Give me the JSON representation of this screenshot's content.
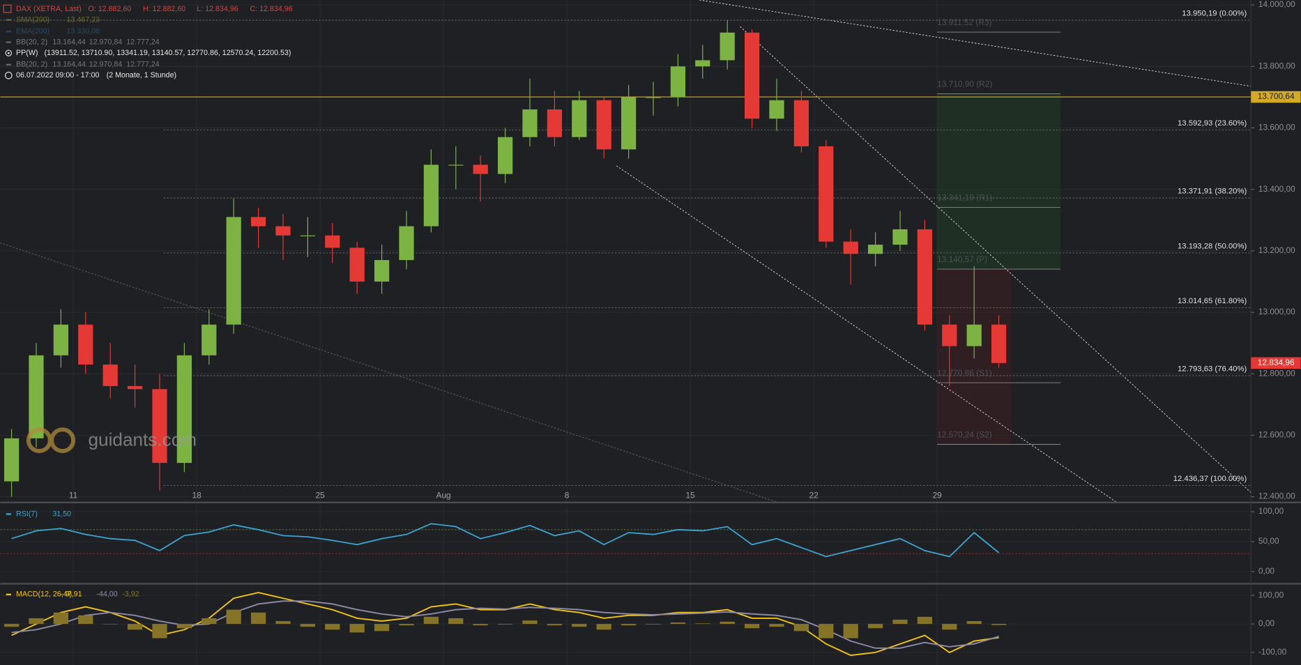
{
  "header": {
    "ohlc": [
      "O: 12.882,60",
      "H: 12.882,60",
      "L: 12.834,96",
      "C: 12.834,96"
    ],
    "indicators": [
      {
        "name": "SMA(200)",
        "values": [
          "13.467,23"
        ]
      },
      {
        "name": "EMA(200)",
        "values": [
          "13.330,06"
        ]
      },
      {
        "name": "BB(20, 2)",
        "values": [
          "13.164,44",
          "12.970,84",
          "12.777,24"
        ]
      },
      {
        "name": "PP(W)",
        "values": [
          "(13911.52, 13710.90, 13341.19, 13140.57, 12770.86, 12570.24, 12200.53)"
        ]
      },
      {
        "name": "BB(20, 2)",
        "values": [
          "13.164,44",
          "12.970,84",
          "12.777,24"
        ]
      }
    ],
    "period": "06.07.2022 09:00 - 17:00",
    "resolution": "(2 Monate, 1 Stunde)",
    "watermark": "guidants.com"
  },
  "chart_data": [
    {
      "type": "candlestick",
      "x": [
        "07-06",
        "07-07",
        "07-08",
        "07-11",
        "07-12",
        "07-13",
        "07-14",
        "07-15",
        "07-18",
        "07-19",
        "07-20",
        "07-21",
        "07-22",
        "07-25",
        "07-26",
        "07-27",
        "07-28",
        "07-29",
        "08-01",
        "08-02",
        "08-03",
        "08-04",
        "08-05",
        "08-08",
        "08-09",
        "08-10",
        "08-11",
        "08-12",
        "08-15",
        "08-16",
        "08-17",
        "08-18",
        "08-19",
        "08-22",
        "08-23",
        "08-24",
        "08-25",
        "08-26",
        "08-29",
        "08-30",
        "08-31"
      ],
      "series": [
        {
          "name": "DAX (XETRA, Last)",
          "up_color": "#7cb342",
          "down_color": "#e53935",
          "open": [
            12450,
            12590,
            12860,
            12960,
            12830,
            12760,
            12750,
            12510,
            12860,
            12960,
            13310,
            13280,
            13250,
            13250,
            13210,
            13100,
            13170,
            13280,
            13480,
            13480,
            13450,
            13570,
            13660,
            13570,
            13690,
            13530,
            13700,
            13700,
            13800,
            13820,
            13910,
            13630,
            13690,
            13540,
            13230,
            13190,
            13220,
            13270,
            12960,
            12890,
            12960
          ],
          "high": [
            12620,
            12900,
            13010,
            13000,
            12900,
            12830,
            12800,
            12900,
            13010,
            13370,
            13340,
            13320,
            13310,
            13290,
            13230,
            13220,
            13330,
            13530,
            13540,
            13510,
            13600,
            13760,
            13720,
            13720,
            13700,
            13740,
            13750,
            13840,
            13870,
            13950,
            13920,
            13760,
            13720,
            13560,
            13270,
            13260,
            13330,
            13300,
            12990,
            13150,
            12990
          ],
          "low": [
            12400,
            12560,
            12820,
            12800,
            12720,
            12690,
            12420,
            12480,
            12830,
            12930,
            13210,
            13170,
            13180,
            13160,
            13060,
            13060,
            13140,
            13260,
            13400,
            13360,
            13420,
            13540,
            13540,
            13560,
            13500,
            13500,
            13640,
            13670,
            13760,
            13790,
            13600,
            13590,
            13520,
            13210,
            13090,
            13150,
            13200,
            12940,
            12760,
            12850,
            12820
          ],
          "close": [
            12590,
            12860,
            12960,
            12830,
            12760,
            12750,
            12510,
            12860,
            12960,
            13310,
            13280,
            13250,
            13250,
            13210,
            13100,
            13170,
            13280,
            13480,
            13480,
            13450,
            13570,
            13660,
            13570,
            13690,
            13530,
            13700,
            13700,
            13800,
            13820,
            13910,
            13630,
            13690,
            13540,
            13230,
            13190,
            13220,
            13270,
            12960,
            12890,
            12960,
            12834.96
          ]
        }
      ],
      "ylim": [
        12384,
        14016
      ],
      "yticks": [
        {
          "value": 12400,
          "label": "12.400,00"
        },
        {
          "value": 12600,
          "label": "12.600,00"
        },
        {
          "value": 12800,
          "label": "12.800,00"
        },
        {
          "value": 13000,
          "label": "13.000,00"
        },
        {
          "value": 13200,
          "label": "13.200,00"
        },
        {
          "value": 13400,
          "label": "13.400,00"
        },
        {
          "value": 13600,
          "label": "13.600,00"
        },
        {
          "value": 13800,
          "label": "13.800,00"
        },
        {
          "value": 14000,
          "label": "14.000,00"
        }
      ],
      "xticks": [
        {
          "value": "07-11",
          "label": "11"
        },
        {
          "value": "07-18",
          "label": "18"
        },
        {
          "value": "07-25",
          "label": "25"
        },
        {
          "value": "08-01",
          "label": "Aug"
        },
        {
          "value": "08-08",
          "label": "8"
        },
        {
          "value": "08-15",
          "label": "15"
        },
        {
          "value": "08-22",
          "label": "22"
        },
        {
          "value": "08-29",
          "label": "29"
        }
      ],
      "grid": true,
      "levels": [
        {
          "value": 13950.19,
          "label": "13.950,19 (0.00%)"
        },
        {
          "value": 13592.93,
          "label": "13.592,93 (23.60%)"
        },
        {
          "value": 13371.91,
          "label": "13.371,91 (38.20%)"
        },
        {
          "value": 13193.28,
          "label": "13.193,28 (50.00%)"
        },
        {
          "value": 13014.65,
          "label": "13.014,65 (61.80%)"
        },
        {
          "value": 12793.63,
          "label": "12.793,63 (76.40%)"
        },
        {
          "value": 12436.37,
          "label": "12.436,37 (100.00%)"
        }
      ],
      "pivots": [
        {
          "value": 13911.52,
          "label": "13.911,52 (R3)"
        },
        {
          "value": 13710.9,
          "label": "13.710,90 (R2)"
        },
        {
          "value": 13341.19,
          "label": "13.341,19 (R1)"
        },
        {
          "value": 13140.57,
          "label": "13.140,57 (P)"
        },
        {
          "value": 12770.86,
          "label": "12.770,86 (S1)"
        },
        {
          "value": 12570.24,
          "label": "12.570,24 (S2)"
        }
      ],
      "marker": {
        "value": 13700.64,
        "label": "13.700,64",
        "color": "#d4a92a"
      },
      "last_price": {
        "value": 12834.96,
        "label": "12.834,96",
        "color": "#e53935"
      }
    },
    {
      "type": "line",
      "series": [
        {
          "name": "RSI(7)",
          "color": "#3aa6d4",
          "values": [
            55,
            68,
            72,
            62,
            55,
            52,
            35,
            60,
            66,
            78,
            70,
            60,
            58,
            52,
            45,
            55,
            62,
            80,
            75,
            55,
            65,
            77,
            60,
            68,
            45,
            65,
            62,
            70,
            68,
            75,
            45,
            55,
            40,
            25,
            35,
            45,
            55,
            35,
            25,
            65,
            31.5
          ],
          "last": {
            "value": 31.5,
            "label": "31,50"
          }
        }
      ],
      "ylim": [
        -19,
        114
      ],
      "yticks": [
        {
          "value": 0,
          "label": "0,00"
        },
        {
          "value": 50,
          "label": "50,00"
        },
        {
          "value": 100,
          "label": "100,00"
        }
      ],
      "bands": [
        {
          "value": 70,
          "color": "#4a7a2a"
        },
        {
          "value": 30,
          "color": "#8a2a2a"
        }
      ]
    },
    {
      "type": "macd",
      "series": [
        {
          "name": "MACD(12, 26, 9)",
          "color": "#f2c40f",
          "values": [
            -40,
            0,
            40,
            60,
            40,
            10,
            -40,
            -20,
            20,
            90,
            110,
            90,
            70,
            50,
            20,
            10,
            20,
            60,
            70,
            50,
            50,
            70,
            50,
            40,
            20,
            30,
            30,
            40,
            40,
            50,
            20,
            20,
            -10,
            -70,
            -110,
            -100,
            -70,
            -40,
            -100,
            -60,
            -47.91
          ],
          "last": {
            "value": -47.91,
            "label": "-47,91"
          }
        },
        {
          "color": "#8f8aa8",
          "values": [
            -30,
            -20,
            0,
            30,
            40,
            30,
            10,
            -5,
            0,
            40,
            70,
            80,
            80,
            70,
            50,
            35,
            25,
            35,
            50,
            55,
            52,
            58,
            55,
            50,
            40,
            35,
            32,
            35,
            38,
            42,
            35,
            30,
            15,
            -20,
            -60,
            -85,
            -85,
            -65,
            -80,
            -70,
            -44
          ],
          "last": {
            "value": -44.0,
            "label": "-44,00"
          }
        },
        {
          "color": "#857428",
          "bars": true,
          "values": [
            -10,
            20,
            40,
            30,
            0,
            -20,
            -50,
            -15,
            20,
            50,
            40,
            10,
            -10,
            -20,
            -30,
            -25,
            -5,
            25,
            20,
            -5,
            -2,
            12,
            -5,
            -10,
            -20,
            -5,
            -2,
            5,
            2,
            8,
            -15,
            -10,
            -25,
            -50,
            -50,
            -15,
            15,
            25,
            -20,
            10,
            -3.92
          ],
          "last": {
            "value": -3.92,
            "label": "-3,92"
          }
        }
      ],
      "ylim": [
        -144,
        138
      ],
      "yticks": [
        {
          "value": -100,
          "label": "-100,00"
        },
        {
          "value": 0,
          "label": "0,00"
        },
        {
          "value": 100,
          "label": "100,00"
        }
      ]
    }
  ]
}
